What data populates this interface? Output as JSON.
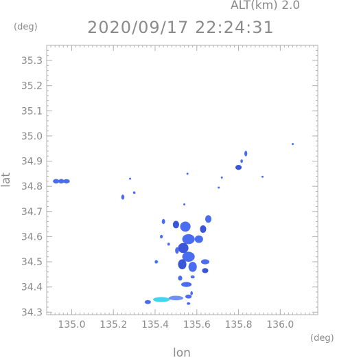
{
  "header": {
    "altitude_label": "ALT(km) 2.0",
    "timestamp": "2020/09/17 22:24:31"
  },
  "units": {
    "lat_unit": "(deg)",
    "lon_unit": "(deg)"
  },
  "axes": {
    "xlabel": "lon",
    "ylabel": "lat",
    "xlim": [
      134.88,
      136.18
    ],
    "ylim": [
      34.29,
      35.36
    ],
    "xticks": [
      {
        "value": 135.0,
        "label": "135.0"
      },
      {
        "value": 135.2,
        "label": "135.2"
      },
      {
        "value": 135.4,
        "label": "135.4"
      },
      {
        "value": 135.6,
        "label": "135.6"
      },
      {
        "value": 135.8,
        "label": "135.8"
      },
      {
        "value": 136.0,
        "label": "136.0"
      }
    ],
    "yticks": [
      {
        "value": 34.3,
        "label": "34.3"
      },
      {
        "value": 34.4,
        "label": "34.4"
      },
      {
        "value": 34.5,
        "label": "34.5"
      },
      {
        "value": 34.6,
        "label": "34.6"
      },
      {
        "value": 34.7,
        "label": "34.7"
      },
      {
        "value": 34.8,
        "label": "34.8"
      },
      {
        "value": 34.9,
        "label": "34.9"
      },
      {
        "value": 35.0,
        "label": "35.0"
      },
      {
        "value": 35.1,
        "label": "35.1"
      },
      {
        "value": 35.2,
        "label": "35.2"
      },
      {
        "value": 35.3,
        "label": "35.3"
      }
    ]
  },
  "colors": {
    "echo_main": "#4a6cf0",
    "echo_dark": "#3a55d8",
    "echo_light": "#6f8ff5",
    "echo_cyan": "#3fd6ee",
    "frame": "#b0b0b0"
  },
  "chart_data": {
    "type": "scatter",
    "title": "",
    "xlabel": "lon",
    "ylabel": "lat",
    "xlim": [
      134.88,
      136.18
    ],
    "ylim": [
      34.29,
      35.36
    ],
    "grid": false,
    "echoes": [
      {
        "lon": 134.925,
        "lat": 34.82,
        "w": 0.03,
        "h": 0.018,
        "c": "main"
      },
      {
        "lon": 134.95,
        "lat": 34.82,
        "w": 0.028,
        "h": 0.018,
        "c": "main"
      },
      {
        "lon": 134.975,
        "lat": 34.82,
        "w": 0.032,
        "h": 0.017,
        "c": "main"
      },
      {
        "lon": 135.28,
        "lat": 34.83,
        "w": 0.008,
        "h": 0.008,
        "c": "main"
      },
      {
        "lon": 135.3,
        "lat": 34.775,
        "w": 0.012,
        "h": 0.01,
        "c": "main"
      },
      {
        "lon": 135.245,
        "lat": 34.757,
        "w": 0.015,
        "h": 0.02,
        "c": "main"
      },
      {
        "lon": 135.555,
        "lat": 34.85,
        "w": 0.006,
        "h": 0.006,
        "c": "main"
      },
      {
        "lon": 135.72,
        "lat": 34.835,
        "w": 0.008,
        "h": 0.008,
        "c": "main"
      },
      {
        "lon": 135.705,
        "lat": 34.795,
        "w": 0.01,
        "h": 0.008,
        "c": "main"
      },
      {
        "lon": 135.8,
        "lat": 34.875,
        "w": 0.03,
        "h": 0.02,
        "c": "dark"
      },
      {
        "lon": 135.835,
        "lat": 34.93,
        "w": 0.014,
        "h": 0.022,
        "c": "main"
      },
      {
        "lon": 135.815,
        "lat": 34.9,
        "w": 0.012,
        "h": 0.014,
        "c": "main"
      },
      {
        "lon": 135.915,
        "lat": 34.838,
        "w": 0.008,
        "h": 0.006,
        "c": "main"
      },
      {
        "lon": 136.06,
        "lat": 34.968,
        "w": 0.005,
        "h": 0.005,
        "c": "main"
      },
      {
        "lon": 135.54,
        "lat": 34.728,
        "w": 0.008,
        "h": 0.008,
        "c": "main"
      },
      {
        "lon": 135.545,
        "lat": 34.64,
        "w": 0.05,
        "h": 0.04,
        "c": "main"
      },
      {
        "lon": 135.5,
        "lat": 34.648,
        "w": 0.03,
        "h": 0.03,
        "c": "dark"
      },
      {
        "lon": 135.44,
        "lat": 34.66,
        "w": 0.016,
        "h": 0.02,
        "c": "main"
      },
      {
        "lon": 135.43,
        "lat": 34.6,
        "w": 0.014,
        "h": 0.014,
        "c": "main"
      },
      {
        "lon": 135.655,
        "lat": 34.67,
        "w": 0.03,
        "h": 0.03,
        "c": "main"
      },
      {
        "lon": 135.63,
        "lat": 34.63,
        "w": 0.03,
        "h": 0.03,
        "c": "dark"
      },
      {
        "lon": 135.61,
        "lat": 34.59,
        "w": 0.04,
        "h": 0.03,
        "c": "main"
      },
      {
        "lon": 135.56,
        "lat": 34.59,
        "w": 0.06,
        "h": 0.04,
        "c": "main"
      },
      {
        "lon": 135.535,
        "lat": 34.555,
        "w": 0.05,
        "h": 0.04,
        "c": "dark"
      },
      {
        "lon": 135.56,
        "lat": 34.52,
        "w": 0.06,
        "h": 0.04,
        "c": "main"
      },
      {
        "lon": 135.53,
        "lat": 34.49,
        "w": 0.04,
        "h": 0.04,
        "c": "dark"
      },
      {
        "lon": 135.58,
        "lat": 34.48,
        "w": 0.04,
        "h": 0.04,
        "c": "main"
      },
      {
        "lon": 135.64,
        "lat": 34.5,
        "w": 0.04,
        "h": 0.02,
        "c": "main"
      },
      {
        "lon": 135.64,
        "lat": 34.465,
        "w": 0.03,
        "h": 0.02,
        "c": "dark"
      },
      {
        "lon": 135.505,
        "lat": 34.545,
        "w": 0.018,
        "h": 0.026,
        "c": "main"
      },
      {
        "lon": 135.465,
        "lat": 34.57,
        "w": 0.012,
        "h": 0.012,
        "c": "main"
      },
      {
        "lon": 135.41,
        "lat": 34.5,
        "w": 0.01,
        "h": 0.01,
        "c": "cyan"
      },
      {
        "lon": 135.405,
        "lat": 34.5,
        "w": 0.014,
        "h": 0.014,
        "c": "main"
      },
      {
        "lon": 135.52,
        "lat": 34.435,
        "w": 0.02,
        "h": 0.02,
        "c": "main"
      },
      {
        "lon": 135.55,
        "lat": 34.41,
        "w": 0.05,
        "h": 0.02,
        "c": "main"
      },
      {
        "lon": 135.58,
        "lat": 34.44,
        "w": 0.02,
        "h": 0.012,
        "c": "main"
      },
      {
        "lon": 135.575,
        "lat": 34.375,
        "w": 0.012,
        "h": 0.016,
        "c": "main"
      },
      {
        "lon": 135.365,
        "lat": 34.34,
        "w": 0.03,
        "h": 0.016,
        "c": "main"
      },
      {
        "lon": 135.43,
        "lat": 34.35,
        "w": 0.08,
        "h": 0.02,
        "c": "cyan"
      },
      {
        "lon": 135.5,
        "lat": 34.356,
        "w": 0.07,
        "h": 0.018,
        "c": "light"
      },
      {
        "lon": 135.56,
        "lat": 34.362,
        "w": 0.03,
        "h": 0.016,
        "c": "main"
      },
      {
        "lon": 135.56,
        "lat": 34.334,
        "w": 0.018,
        "h": 0.01,
        "c": "main"
      }
    ]
  }
}
